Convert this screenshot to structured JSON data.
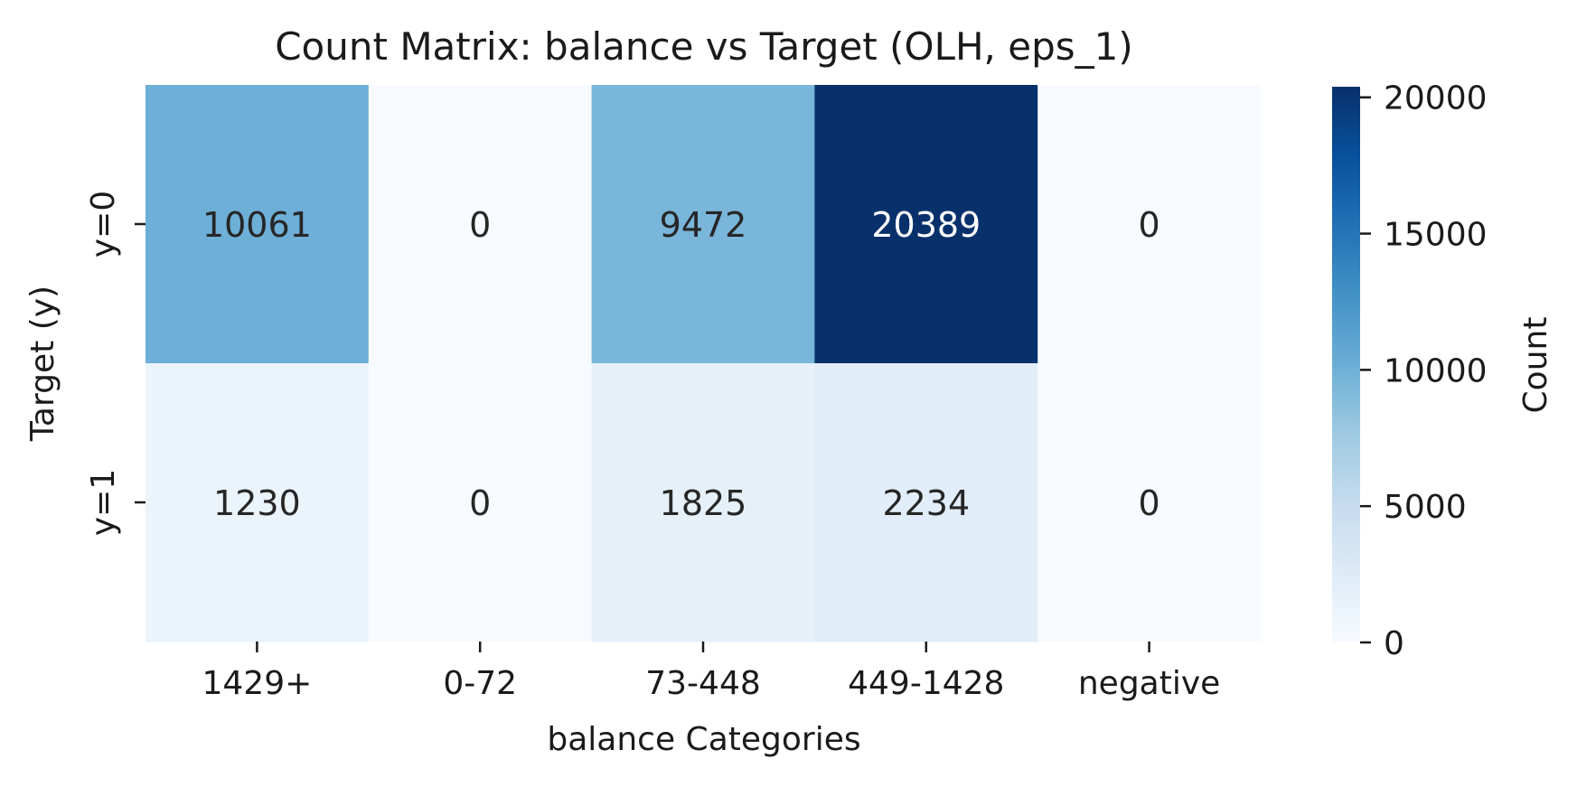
{
  "chart_data": {
    "type": "heatmap",
    "title": "Count Matrix: balance vs Target (OLH, eps_1)",
    "xlabel": "balance Categories",
    "ylabel": "Target (y)",
    "x_categories": [
      "1429+",
      "0-72",
      "73-448",
      "449-1428",
      "negative"
    ],
    "y_categories": [
      "y=0",
      "y=1"
    ],
    "values": [
      [
        10061,
        0,
        9472,
        20389,
        0
      ],
      [
        1230,
        0,
        1825,
        2234,
        0
      ]
    ],
    "colorbar": {
      "label": "Count",
      "ticks": [
        0,
        5000,
        10000,
        15000,
        20000
      ],
      "range": [
        0,
        20389
      ],
      "colormap": "Blues"
    }
  }
}
